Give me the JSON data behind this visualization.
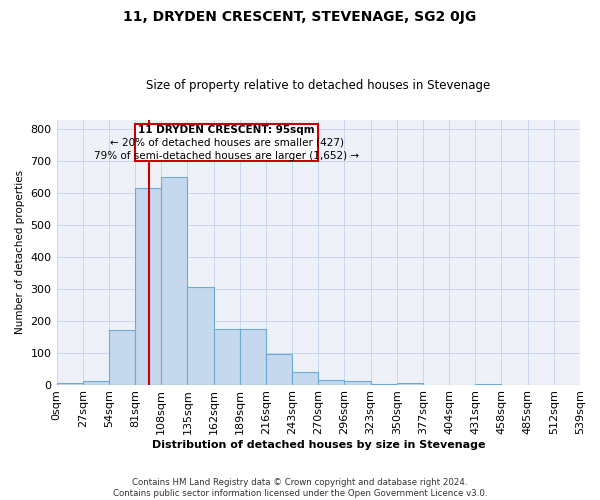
{
  "title": "11, DRYDEN CRESCENT, STEVENAGE, SG2 0JG",
  "subtitle": "Size of property relative to detached houses in Stevenage",
  "xlabel": "Distribution of detached houses by size in Stevenage",
  "ylabel": "Number of detached properties",
  "bin_edges": [
    0,
    27,
    54,
    81,
    108,
    135,
    162,
    189,
    216,
    243,
    270,
    297,
    324,
    351,
    378,
    405,
    432,
    459,
    486,
    513,
    540
  ],
  "bar_heights": [
    5,
    12,
    170,
    615,
    650,
    305,
    175,
    175,
    95,
    40,
    15,
    10,
    2,
    5,
    0,
    0,
    2,
    0,
    0,
    0
  ],
  "bar_color": "#c5d8ee",
  "bar_edge_color": "#6aaad4",
  "property_size": 95,
  "vline_color": "#cc0000",
  "annotation_text_line1": "11 DRYDEN CRESCENT: 95sqm",
  "annotation_text_line2": "← 20% of detached houses are smaller (427)",
  "annotation_text_line3": "79% of semi-detached houses are larger (1,652) →",
  "ylim": [
    0,
    830
  ],
  "xlim": [
    0,
    540
  ],
  "tick_labels": [
    "0sqm",
    "27sqm",
    "54sqm",
    "81sqm",
    "108sqm",
    "135sqm",
    "162sqm",
    "189sqm",
    "216sqm",
    "243sqm",
    "270sqm",
    "296sqm",
    "323sqm",
    "350sqm",
    "377sqm",
    "404sqm",
    "431sqm",
    "458sqm",
    "485sqm",
    "512sqm",
    "539sqm"
  ],
  "footer_text": "Contains HM Land Registry data © Crown copyright and database right 2024.\nContains public sector information licensed under the Open Government Licence v3.0.",
  "grid_color": "#c8d8ec",
  "background_color": "#eef2f8"
}
